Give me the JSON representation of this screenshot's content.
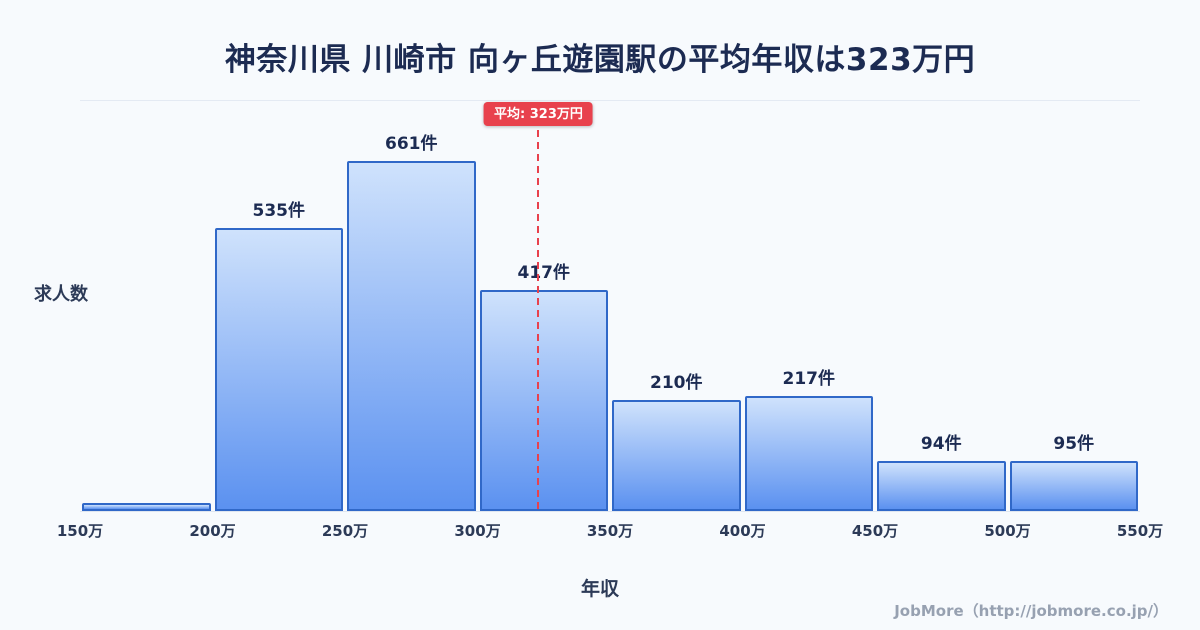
{
  "title": "神奈川県 川崎市 向ヶ丘遊園駅の平均年収は323万円",
  "footer": "JobMore（http://jobmore.co.jp/）",
  "chart_data": {
    "type": "bar",
    "title": "神奈川県 川崎市 向ヶ丘遊園駅の平均年収は323万円",
    "xlabel": "年収",
    "ylabel": "求人数",
    "x_range": [
      150,
      550
    ],
    "ylim": [
      0,
      700
    ],
    "grid": "off",
    "legend": "none",
    "x_ticks": [
      "150万",
      "200万",
      "250万",
      "300万",
      "350万",
      "400万",
      "450万",
      "500万",
      "550万"
    ],
    "bins": [
      {
        "range": "150万-200万",
        "value": 15,
        "label": ""
      },
      {
        "range": "200万-250万",
        "value": 535,
        "label": "535件"
      },
      {
        "range": "250万-300万",
        "value": 661,
        "label": "661件"
      },
      {
        "range": "300万-350万",
        "value": 417,
        "label": "417件"
      },
      {
        "range": "350万-400万",
        "value": 210,
        "label": "210件"
      },
      {
        "range": "400万-450万",
        "value": 217,
        "label": "217件"
      },
      {
        "range": "450万-500万",
        "value": 94,
        "label": "94件"
      },
      {
        "range": "500万-550万",
        "value": 95,
        "label": "95件"
      }
    ],
    "average": {
      "value": 323,
      "label": "平均: 323万円"
    },
    "colors": {
      "background": "#f7fafd",
      "bar_top": "#cfe2fc",
      "bar_bottom": "#5b91f0",
      "bar_border": "#3068c8",
      "average_line": "#e8414d",
      "title_text": "#1c2b52",
      "axis_text": "#2c3a57",
      "footer_text": "#97a1b1"
    }
  }
}
